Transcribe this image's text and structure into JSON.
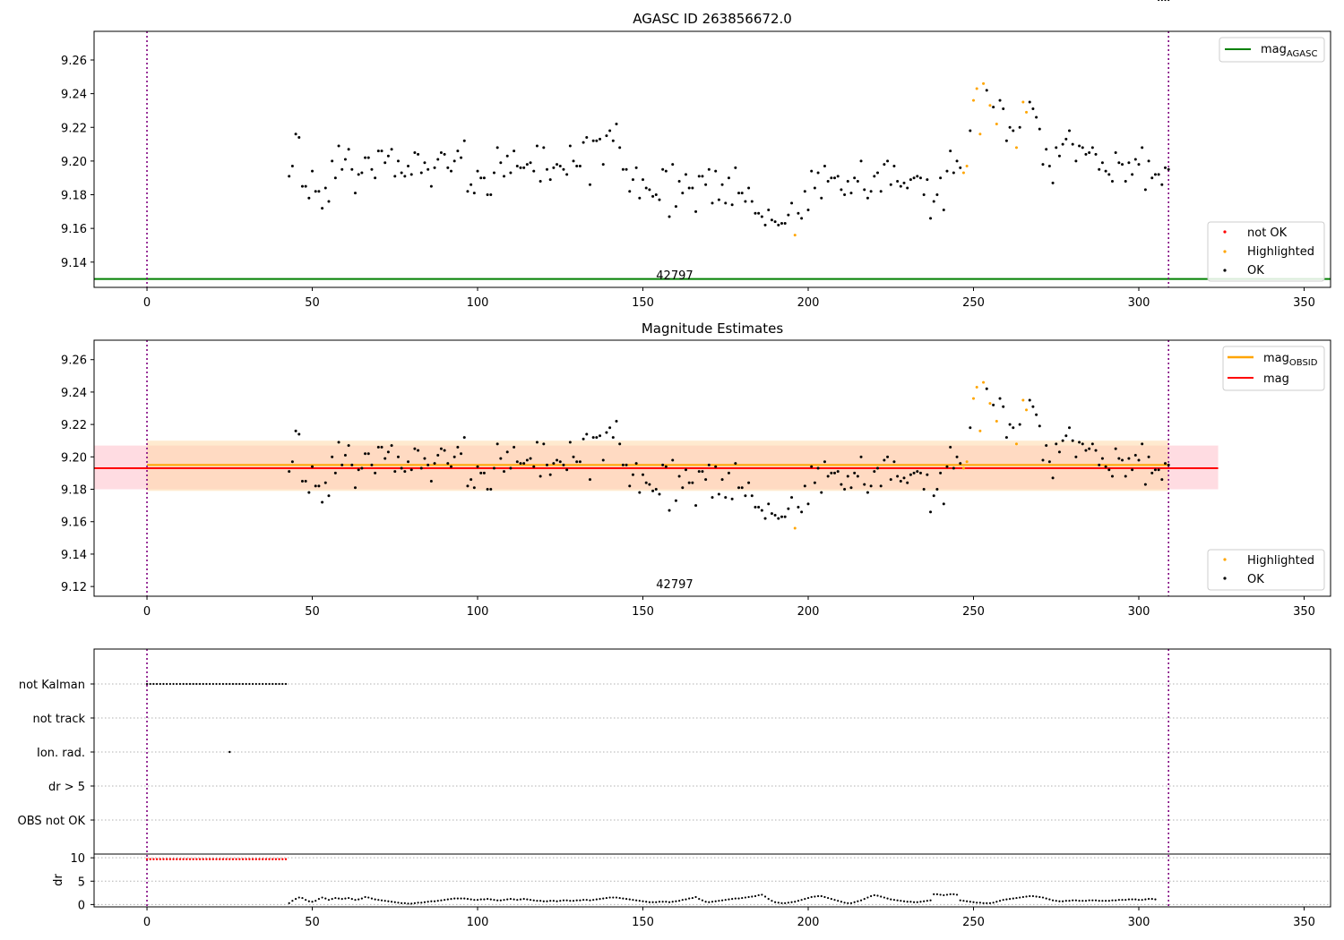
{
  "chart_data": [
    {
      "type": "scatter",
      "title": "AGASC ID 263856672.0",
      "xlim": [
        -16,
        358
      ],
      "ylim": [
        9.125,
        9.277
      ],
      "xticks": [
        0,
        50,
        100,
        150,
        200,
        250,
        300,
        350
      ],
      "yticks": [
        9.14,
        9.16,
        9.18,
        9.2,
        9.22,
        9.24,
        9.26
      ],
      "annotation": "42797",
      "annotation_x": 155,
      "vlines": [
        0,
        309
      ],
      "hlines": [
        {
          "name": "mag_AGASC",
          "y": 9.13,
          "x": [
            -16,
            358
          ],
          "color": "#008000"
        }
      ],
      "legend_upper": [
        {
          "label": "mag",
          "subscript": "AGASC",
          "color": "#008000"
        }
      ],
      "legend_lower": [
        {
          "label": "not OK",
          "color": "#ff0000"
        },
        {
          "label": "Highlighted",
          "color": "#ffa500"
        },
        {
          "label": "OK",
          "color": "#000000"
        }
      ]
    },
    {
      "type": "scatter",
      "title": "Magnitude Estimates",
      "xlim": [
        -16,
        358
      ],
      "ylim": [
        9.114,
        9.272
      ],
      "xticks": [
        0,
        50,
        100,
        150,
        200,
        250,
        300,
        350
      ],
      "yticks": [
        9.12,
        9.14,
        9.16,
        9.18,
        9.2,
        9.22,
        9.24,
        9.26
      ],
      "annotation": "42797",
      "annotation_x": 155,
      "vlines": [
        0,
        309
      ],
      "bands": [
        {
          "name": "mag",
          "x": [
            -16,
            324
          ],
          "y": [
            9.18,
            9.207
          ],
          "color": "#ffc0cb"
        },
        {
          "name": "mag_OBSID",
          "x": [
            0,
            309
          ],
          "y": [
            9.179,
            9.21
          ],
          "color": "#ffd8a8"
        }
      ],
      "hlines": [
        {
          "name": "mag_OBSID",
          "y": 9.195,
          "x": [
            0,
            309
          ],
          "color": "#ffa500"
        },
        {
          "name": "mag",
          "y": 9.193,
          "x": [
            -16,
            324
          ],
          "color": "#ff0000"
        }
      ],
      "legend_upper": [
        {
          "label": "mag",
          "subscript": "OBSID",
          "color": "#ffa500"
        },
        {
          "label": "mag",
          "subscript": "",
          "color": "#ff0000"
        }
      ],
      "legend_lower": [
        {
          "label": "Highlighted",
          "color": "#ffa500"
        },
        {
          "label": "OK",
          "color": "#000000"
        }
      ]
    },
    {
      "type": "scatter",
      "title": "",
      "xlim": [
        -16,
        358
      ],
      "xticks": [
        0,
        50,
        100,
        150,
        200,
        250,
        300,
        350
      ],
      "flag_categories": [
        "not Kalman",
        "not track",
        "Ion. rad.",
        "dr > 5",
        "OBS not OK"
      ],
      "not_kalman_x_range": [
        0,
        42
      ],
      "ion_rad_x": [
        25
      ],
      "dr_ylim": [
        -0.5,
        10.8
      ],
      "dr_ylabel": "dr",
      "dr_yticks": [
        0,
        5,
        10
      ],
      "dr_high_x_range": [
        0,
        42
      ],
      "dr_high_value": 9.7,
      "vlines": [
        0,
        309
      ]
    }
  ],
  "series": {
    "mag_x": [
      43,
      44,
      45,
      46,
      47,
      48,
      49,
      50,
      51,
      52,
      53,
      54,
      55,
      56,
      57,
      58,
      59,
      60,
      61,
      62,
      63,
      64,
      65,
      66,
      67,
      68,
      69,
      70,
      71,
      72,
      73,
      74,
      75,
      76,
      77,
      78,
      79,
      80,
      81,
      82,
      83,
      84,
      85,
      86,
      87,
      88,
      89,
      90,
      91,
      92,
      93,
      94,
      95,
      96,
      97,
      98,
      99,
      100,
      101,
      102,
      103,
      104,
      105,
      106,
      107,
      108,
      109,
      110,
      111,
      112,
      113,
      114,
      115,
      116,
      117,
      118,
      119,
      120,
      121,
      122,
      123,
      124,
      125,
      126,
      127,
      128,
      129,
      130,
      131,
      132,
      133,
      134,
      135,
      136,
      137,
      138,
      139,
      140,
      141,
      142,
      143,
      144,
      145,
      146,
      147,
      148,
      149,
      150,
      151,
      152,
      153,
      154,
      155,
      156,
      157,
      158,
      159,
      160,
      161,
      162,
      163,
      164,
      165,
      166,
      167,
      168,
      169,
      170,
      171,
      172,
      173,
      174,
      175,
      176,
      177,
      178,
      179,
      180,
      181,
      182,
      183,
      184,
      185,
      186,
      187,
      188,
      189,
      190,
      191,
      192,
      193,
      194,
      195,
      196,
      197,
      198,
      199,
      200,
      201,
      202,
      203,
      204,
      205,
      206,
      207,
      208,
      209,
      210,
      211,
      212,
      213,
      214,
      215,
      216,
      217,
      218,
      219,
      220,
      221,
      222,
      223,
      224,
      225,
      226,
      227,
      228,
      229,
      230,
      231,
      232,
      233,
      234,
      235,
      236,
      237,
      238,
      239,
      240,
      241,
      242,
      243,
      244,
      245,
      246,
      247,
      248,
      249,
      250,
      251,
      252,
      253,
      254,
      255,
      256,
      257,
      258,
      259,
      260,
      261,
      262,
      263,
      264,
      265,
      266,
      267,
      268,
      269,
      270,
      271,
      272,
      273,
      274,
      275,
      276,
      277,
      278,
      279,
      280,
      281,
      282,
      283,
      284,
      285,
      286,
      287,
      288,
      289,
      290,
      291,
      292,
      293,
      294,
      295,
      296,
      297,
      298,
      299,
      300,
      301,
      302,
      303,
      304,
      305,
      306,
      307,
      308,
      309
    ],
    "mag_y": [
      9.191,
      9.197,
      9.216,
      9.214,
      9.185,
      9.185,
      9.178,
      9.194,
      9.182,
      9.182,
      9.172,
      9.184,
      9.176,
      9.2,
      9.19,
      9.209,
      9.195,
      9.201,
      9.207,
      9.195,
      9.181,
      9.192,
      9.193,
      9.202,
      9.202,
      9.195,
      9.19,
      9.206,
      9.206,
      9.199,
      9.203,
      9.207,
      9.191,
      9.2,
      9.193,
      9.191,
      9.197,
      9.192,
      9.205,
      9.204,
      9.193,
      9.199,
      9.195,
      9.185,
      9.196,
      9.201,
      9.205,
      9.204,
      9.196,
      9.194,
      9.2,
      9.206,
      9.202,
      9.212,
      9.182,
      9.186,
      9.181,
      9.194,
      9.19,
      9.19,
      9.18,
      9.18,
      9.193,
      9.208,
      9.199,
      9.191,
      9.203,
      9.193,
      9.206,
      9.197,
      9.196,
      9.196,
      9.198,
      9.199,
      9.194,
      9.209,
      9.188,
      9.208,
      9.195,
      9.189,
      9.196,
      9.198,
      9.197,
      9.195,
      9.192,
      9.209,
      9.2,
      9.197,
      9.197,
      9.211,
      9.214,
      9.186,
      9.212,
      9.212,
      9.213,
      9.198,
      9.215,
      9.218,
      9.212,
      9.222,
      9.208,
      9.195,
      9.195,
      9.182,
      9.189,
      9.196,
      9.178,
      9.189,
      9.184,
      9.183,
      9.179,
      9.18,
      9.177,
      9.195,
      9.194,
      9.167,
      9.198,
      9.173,
      9.188,
      9.181,
      9.192,
      9.184,
      9.184,
      9.17,
      9.191,
      9.191,
      9.186,
      9.195,
      9.175,
      9.194,
      9.177,
      9.186,
      9.175,
      9.19,
      9.174,
      9.196,
      9.181,
      9.181,
      9.176,
      9.184,
      9.176,
      9.169,
      9.169,
      9.167,
      9.162,
      9.171,
      9.165,
      9.164,
      9.162,
      9.163,
      9.163,
      9.168,
      9.175,
      9.156,
      9.169,
      9.166,
      9.182,
      9.171,
      9.194,
      9.184,
      9.193,
      9.178,
      9.197,
      9.188,
      9.19,
      9.19,
      9.191,
      9.183,
      9.18,
      9.188,
      9.181,
      9.19,
      9.188,
      9.2,
      9.183,
      9.178,
      9.182,
      9.191,
      9.193,
      9.182,
      9.198,
      9.2,
      9.186,
      9.197,
      9.188,
      9.185,
      9.187,
      9.184,
      9.189,
      9.19,
      9.191,
      9.19,
      9.18,
      9.189,
      9.166,
      9.176,
      9.18,
      9.19,
      9.171,
      9.194,
      9.206,
      9.193,
      9.2,
      9.196,
      9.193,
      9.197,
      9.218,
      9.236,
      9.243,
      9.216,
      9.246,
      9.242,
      9.233,
      9.232,
      9.222,
      9.236,
      9.231,
      9.212,
      9.22,
      9.218,
      9.208,
      9.22,
      9.235,
      9.229,
      9.235,
      9.231,
      9.226,
      9.219,
      9.198,
      9.207,
      9.197,
      9.187,
      9.208,
      9.203,
      9.21,
      9.213,
      9.218,
      9.21,
      9.2,
      9.209,
      9.208,
      9.204,
      9.205,
      9.208,
      9.204,
      9.195,
      9.199,
      9.194,
      9.192,
      9.188,
      9.205,
      9.199,
      9.198,
      9.188,
      9.199,
      9.192,
      9.201,
      9.198,
      9.208,
      9.183,
      9.2,
      9.19,
      9.192,
      9.192,
      9.186,
      9.196,
      9.195,
      9.196,
      9.205
    ],
    "highlight_x": [
      196,
      247,
      248,
      250,
      251,
      252,
      253,
      255,
      257,
      263,
      265,
      266
    ],
    "dr_x": [
      43,
      44,
      45,
      46,
      47,
      48,
      49,
      50,
      51,
      52,
      53,
      54,
      55,
      56,
      57,
      58,
      59,
      60,
      61,
      62,
      63,
      64,
      65,
      66,
      67,
      68,
      69,
      70,
      71,
      72,
      73,
      74,
      75,
      76,
      77,
      78,
      79,
      80,
      81,
      82,
      83,
      84,
      85,
      86,
      87,
      88,
      89,
      90,
      91,
      92,
      93,
      94,
      95,
      96,
      97,
      98,
      99,
      100,
      101,
      102,
      103,
      104,
      105,
      106,
      107,
      108,
      109,
      110,
      111,
      112,
      113,
      114,
      115,
      116,
      117,
      118,
      119,
      120,
      121,
      122,
      123,
      124,
      125,
      126,
      127,
      128,
      129,
      130,
      131,
      132,
      133,
      134,
      135,
      136,
      137,
      138,
      139,
      140,
      141,
      142,
      143,
      144,
      145,
      146,
      147,
      148,
      149,
      150,
      151,
      152,
      153,
      154,
      155,
      156,
      157,
      158,
      159,
      160,
      161,
      162,
      163,
      164,
      165,
      166,
      167,
      168,
      169,
      170,
      171,
      172,
      173,
      174,
      175,
      176,
      177,
      178,
      179,
      180,
      181,
      182,
      183,
      184,
      185,
      186,
      187,
      188,
      189,
      190,
      191,
      192,
      193,
      194,
      195,
      196,
      197,
      198,
      199,
      200,
      201,
      202,
      203,
      204,
      205,
      206,
      207,
      208,
      209,
      210,
      211,
      212,
      213,
      214,
      215,
      216,
      217,
      218,
      219,
      220,
      221,
      222,
      223,
      224,
      225,
      226,
      227,
      228,
      229,
      230,
      231,
      232,
      233,
      234,
      235,
      236,
      237,
      238,
      239,
      240,
      241,
      242,
      243,
      244,
      245,
      246,
      247,
      248,
      249,
      250,
      251,
      252,
      253,
      254,
      255,
      256,
      257,
      258,
      259,
      260,
      261,
      262,
      263,
      264,
      265,
      266,
      267,
      268,
      269,
      270,
      271,
      272,
      273,
      274,
      275,
      276,
      277,
      278,
      279,
      280,
      281,
      282,
      283,
      284,
      285,
      286,
      287,
      288,
      289,
      290,
      291,
      292,
      293,
      294,
      295,
      296,
      297,
      298,
      299,
      300,
      301,
      302,
      303,
      304,
      305,
      306,
      307,
      308,
      309
    ],
    "dr_y": [
      0.3,
      0.8,
      1.2,
      1.5,
      1.4,
      1.0,
      0.7,
      0.6,
      0.8,
      1.2,
      1.5,
      1.3,
      1.0,
      1.2,
      1.4,
      1.3,
      1.2,
      1.3,
      1.4,
      1.2,
      1.0,
      1.1,
      1.3,
      1.6,
      1.5,
      1.3,
      1.1,
      1.0,
      0.9,
      0.8,
      0.7,
      0.6,
      0.5,
      0.4,
      0.3,
      0.3,
      0.2,
      0.2,
      0.3,
      0.4,
      0.4,
      0.5,
      0.6,
      0.7,
      0.7,
      0.8,
      0.9,
      1.0,
      1.1,
      1.2,
      1.3,
      1.3,
      1.3,
      1.3,
      1.2,
      1.1,
      1.0,
      1.0,
      1.1,
      1.1,
      1.2,
      1.1,
      1.0,
      0.9,
      0.9,
      1.0,
      1.1,
      1.2,
      1.1,
      1.0,
      1.1,
      1.2,
      1.1,
      1.0,
      0.9,
      0.8,
      0.8,
      0.7,
      0.7,
      0.8,
      0.8,
      0.7,
      0.8,
      0.9,
      0.9,
      0.8,
      0.8,
      0.9,
      0.9,
      1.0,
      1.0,
      0.9,
      1.0,
      1.1,
      1.2,
      1.3,
      1.4,
      1.5,
      1.5,
      1.5,
      1.4,
      1.3,
      1.2,
      1.1,
      1.0,
      0.9,
      0.8,
      0.7,
      0.6,
      0.5,
      0.5,
      0.5,
      0.6,
      0.6,
      0.6,
      0.5,
      0.6,
      0.7,
      0.8,
      1.0,
      1.1,
      1.3,
      1.4,
      1.6,
      1.2,
      0.9,
      0.6,
      0.5,
      0.6,
      0.7,
      0.8,
      0.9,
      1.0,
      1.1,
      1.2,
      1.3,
      1.3,
      1.4,
      1.5,
      1.6,
      1.7,
      1.8,
      2.0,
      2.1,
      1.7,
      1.2,
      0.8,
      0.5,
      0.4,
      0.3,
      0.3,
      0.4,
      0.5,
      0.6,
      0.8,
      1.0,
      1.2,
      1.4,
      1.6,
      1.7,
      1.8,
      1.8,
      1.6,
      1.4,
      1.2,
      1.0,
      0.8,
      0.6,
      0.4,
      0.3,
      0.3,
      0.5,
      0.7,
      0.9,
      1.2,
      1.5,
      1.8,
      2.0,
      1.9,
      1.7,
      1.5,
      1.3,
      1.1,
      1.0,
      0.9,
      0.8,
      0.7,
      0.6,
      0.6,
      0.5,
      0.5,
      0.6,
      0.7,
      0.8,
      0.9,
      2.2,
      2.2,
      2.1,
      2.0,
      2.1,
      2.2,
      2.2,
      2.1,
      0.9,
      0.8,
      0.7,
      0.6,
      0.5,
      0.4,
      0.4,
      0.3,
      0.3,
      0.3,
      0.4,
      0.6,
      0.8,
      1.0,
      1.1,
      1.2,
      1.3,
      1.4,
      1.5,
      1.6,
      1.7,
      1.8,
      1.8,
      1.7,
      1.6,
      1.5,
      1.3,
      1.1,
      0.9,
      0.8,
      0.7,
      0.7,
      0.8,
      0.8,
      0.9,
      0.9,
      0.8,
      0.8,
      0.8,
      0.9,
      0.9,
      0.9,
      0.8,
      0.8,
      0.8,
      0.8,
      0.9,
      0.9,
      1.0,
      1.0,
      1.0,
      1.1,
      1.1,
      1.1,
      1.0,
      1.0,
      1.1,
      1.2,
      1.2,
      1.1
    ]
  }
}
